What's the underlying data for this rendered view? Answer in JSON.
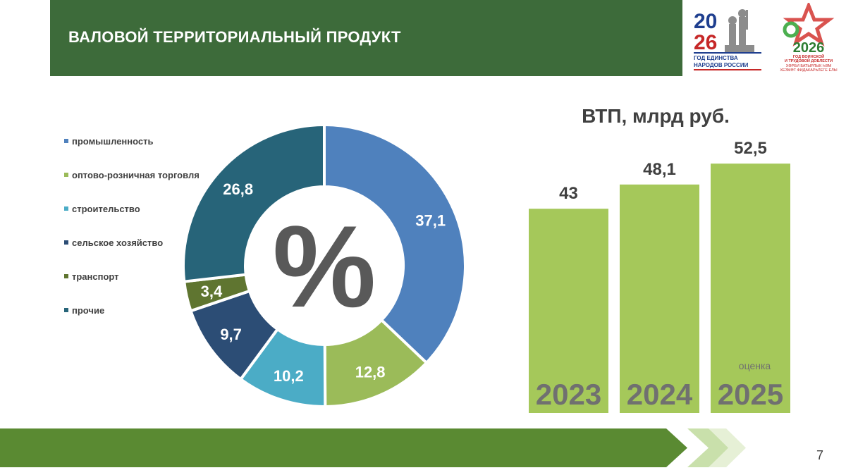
{
  "header": {
    "title": "ВАЛОВОЙ ТЕРРИТОРИАЛЬНЫЙ ПРОДУКТ"
  },
  "logos": {
    "unity": {
      "top": "20",
      "bottom": "26",
      "caption_lines": [
        "ГОД ЕДИНСТВА",
        "НАРОДОВ РОССИИ"
      ]
    },
    "valor": {
      "year": "2026",
      "caption_lines": [
        "ГОД ВОИНСКОЙ",
        "И ТРУДОВОЙ ДОБЛЕСТИ",
        "ХӘРБИ БАТЫРЛЫК ҺӘМ",
        "ХЕЗМӘТ ФИДАКАРЬЛЕГЕ ЕЛЫ"
      ]
    }
  },
  "page_number": "7",
  "colors": {
    "header": "#3d6b3a",
    "footer": "#5a8a32",
    "bar": "#a5c85a",
    "percent_sign": "#595959"
  },
  "chart_data": [
    {
      "type": "pie",
      "style": "donut",
      "center_label": "%",
      "categories": [
        "промышленность",
        "оптово-розничная торговля",
        "строительство",
        "сельское хозяйство",
        "транспорт",
        "прочие"
      ],
      "values": [
        37.1,
        12.8,
        10.2,
        9.7,
        3.4,
        26.8
      ],
      "value_labels": [
        "37,1",
        "12,8",
        "10,2",
        "9,7",
        "3,4",
        "26,8"
      ],
      "colors": [
        "#4f81bd",
        "#9bbb59",
        "#4bacc6",
        "#2c4d75",
        "#5f7530",
        "#276479"
      ],
      "legend_position": "left"
    },
    {
      "type": "bar",
      "title": "ВТП, млрд руб.",
      "categories": [
        "2023",
        "2024",
        "2025"
      ],
      "values": [
        43,
        48.1,
        52.5
      ],
      "value_labels": [
        "43",
        "48,1",
        "52,5"
      ],
      "annotations": [
        {
          "category": "2025",
          "text": "оценка"
        }
      ],
      "color": "#a5c85a",
      "grid": false
    }
  ]
}
